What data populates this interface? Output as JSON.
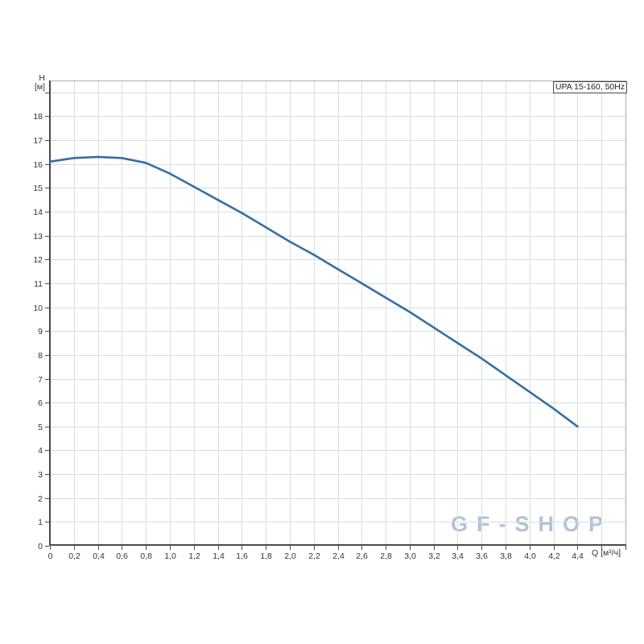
{
  "colors": {
    "background": "#ffffff",
    "curve": "#336fa5",
    "grid": "#d9dcdf",
    "axis": "#4a4a4a",
    "frame": "#a9adb0",
    "tick_text": "#333333",
    "watermark": "#b2c2d5",
    "box_border": "#4a4a4a"
  },
  "watermark_text": "GF-SHOP",
  "chart_data": {
    "type": "line",
    "title": "",
    "series_box_label": "UPA 15-160, 50Hz",
    "grid": true,
    "legend_position": "top-right-box",
    "x_axis": {
      "name": "Q",
      "unit": "[м³/ч]",
      "label": "Q [м³/ч]",
      "min": 0,
      "labeled_max": 4.4,
      "plot_max": 4.8,
      "tick_step": 0.2,
      "tick_labels": [
        "0",
        "0,2",
        "0,4",
        "0,6",
        "0,8",
        "1,0",
        "1,2",
        "1,4",
        "1,6",
        "1,8",
        "2,0",
        "2,2",
        "2,4",
        "2,6",
        "2,8",
        "3,0",
        "3,2",
        "3,4",
        "3,6",
        "3,8",
        "4,0",
        "4,2",
        "4,4"
      ]
    },
    "y_axis": {
      "name": "H",
      "unit": "[м]",
      "min": 0,
      "labeled_max": 18,
      "plot_max": 19.5,
      "tick_step": 1,
      "tick_labels": [
        "0",
        "1",
        "2",
        "3",
        "4",
        "5",
        "6",
        "7",
        "8",
        "9",
        "10",
        "11",
        "12",
        "13",
        "14",
        "15",
        "16",
        "17",
        "18"
      ]
    },
    "series": [
      {
        "name": "UPA 15-160, 50Hz",
        "x": [
          0,
          0.2,
          0.4,
          0.6,
          0.8,
          1.0,
          1.2,
          1.4,
          1.6,
          1.8,
          2.0,
          2.2,
          2.4,
          2.6,
          2.8,
          3.0,
          3.2,
          3.4,
          3.6,
          3.8,
          4.0,
          4.2,
          4.4
        ],
        "y": [
          16.1,
          16.25,
          16.3,
          16.25,
          16.05,
          15.6,
          15.05,
          14.5,
          13.95,
          13.35,
          12.75,
          12.2,
          11.6,
          11.0,
          10.4,
          9.8,
          9.15,
          8.5,
          7.85,
          7.15,
          6.45,
          5.75,
          5.0
        ]
      }
    ]
  }
}
